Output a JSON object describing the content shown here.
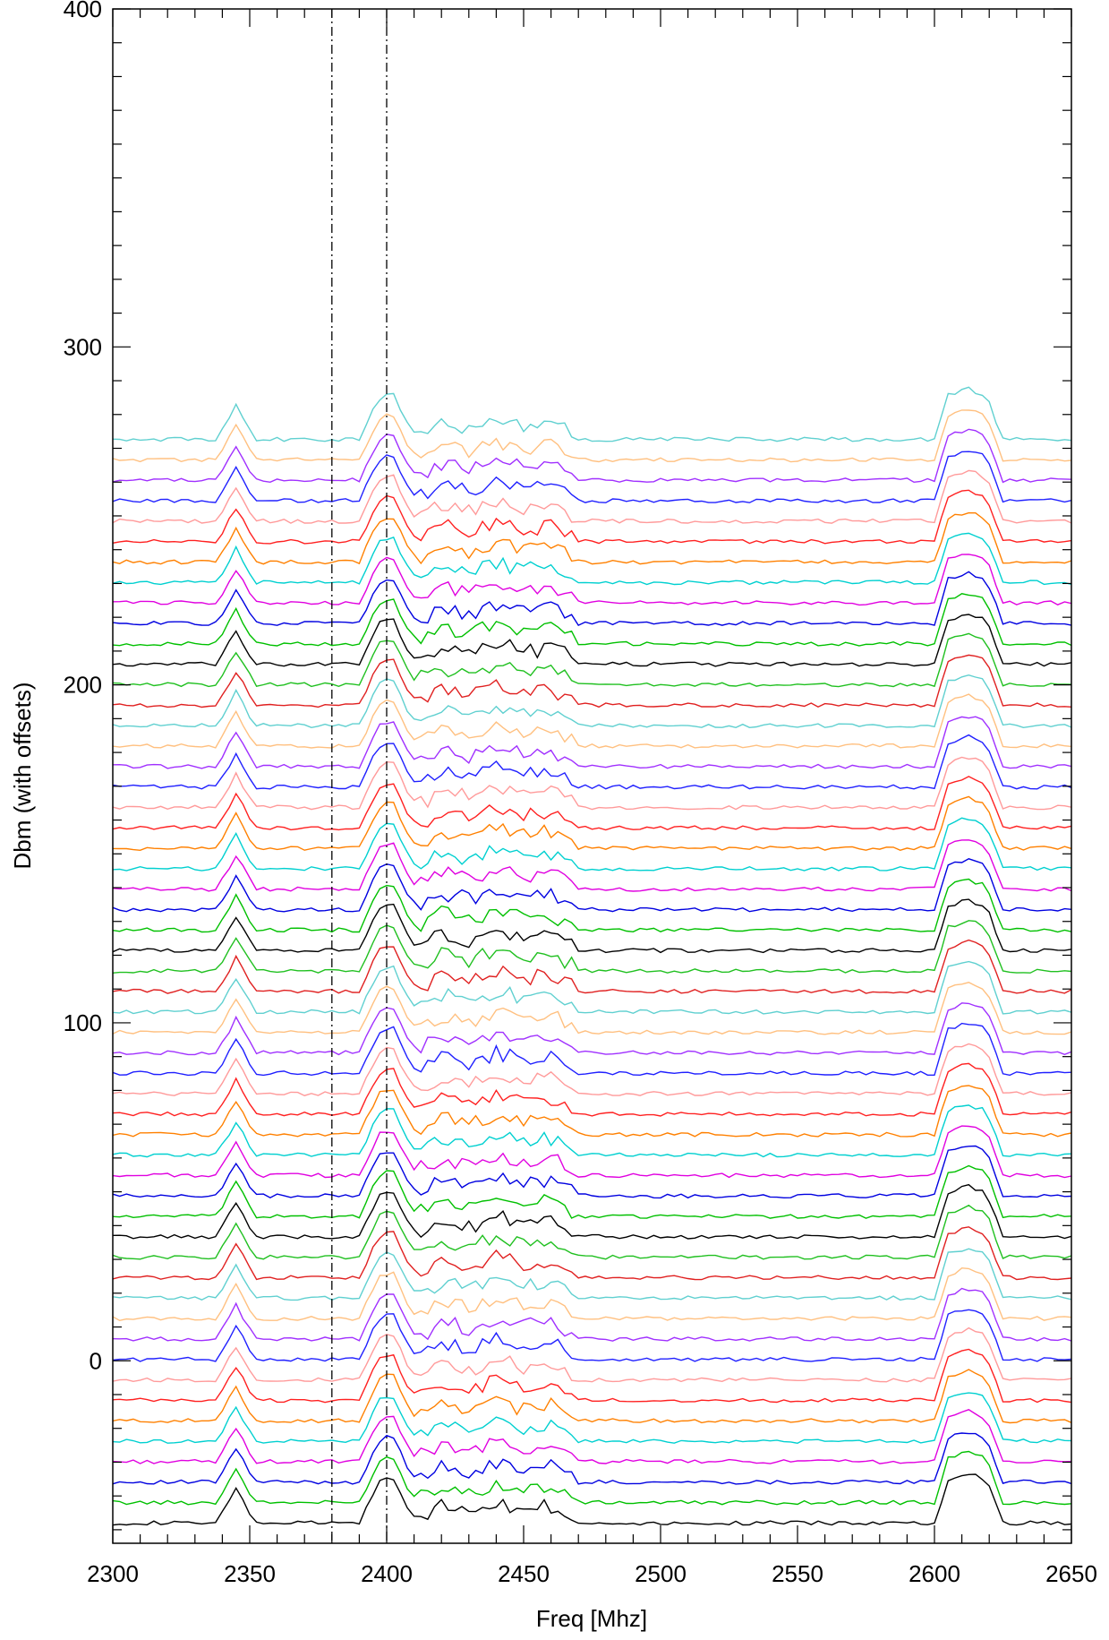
{
  "chart_data": {
    "type": "line",
    "title": "",
    "xlabel": "Freq [Mhz]",
    "ylabel": "Dbm (with offsets)",
    "xlim": [
      2300,
      2650
    ],
    "ylim": [
      -54,
      400
    ],
    "xticks": [
      2300,
      2350,
      2400,
      2450,
      2500,
      2550,
      2600,
      2650
    ],
    "yticks": [
      0,
      100,
      200,
      300,
      400
    ],
    "vlines": [
      2380,
      2400
    ],
    "grid": false,
    "legend": "none",
    "trace_count": 54,
    "first_offset": -48,
    "offset_step": 6.05,
    "baseline_shape": {
      "freq": [
        2300,
        2338,
        2345,
        2352,
        2390,
        2397,
        2402,
        2409,
        2414,
        2420,
        2430,
        2440,
        2450,
        2460,
        2470,
        2600,
        2605,
        2612,
        2619,
        2625,
        2650
      ],
      "level": [
        0,
        0,
        10,
        0,
        0,
        12,
        14,
        2,
        1,
        4,
        2,
        5,
        3,
        4,
        0,
        0,
        13,
        15,
        13,
        0,
        0
      ]
    },
    "palette": [
      "#000000",
      "#00c000",
      "#0000e0",
      "#e000e0",
      "#00d0d0",
      "#ff8000",
      "#ff2020",
      "#ff9a9a",
      "#2020ff",
      "#a030ff",
      "#ffc080",
      "#60d0d0",
      "#e02020",
      "#20c020"
    ]
  }
}
